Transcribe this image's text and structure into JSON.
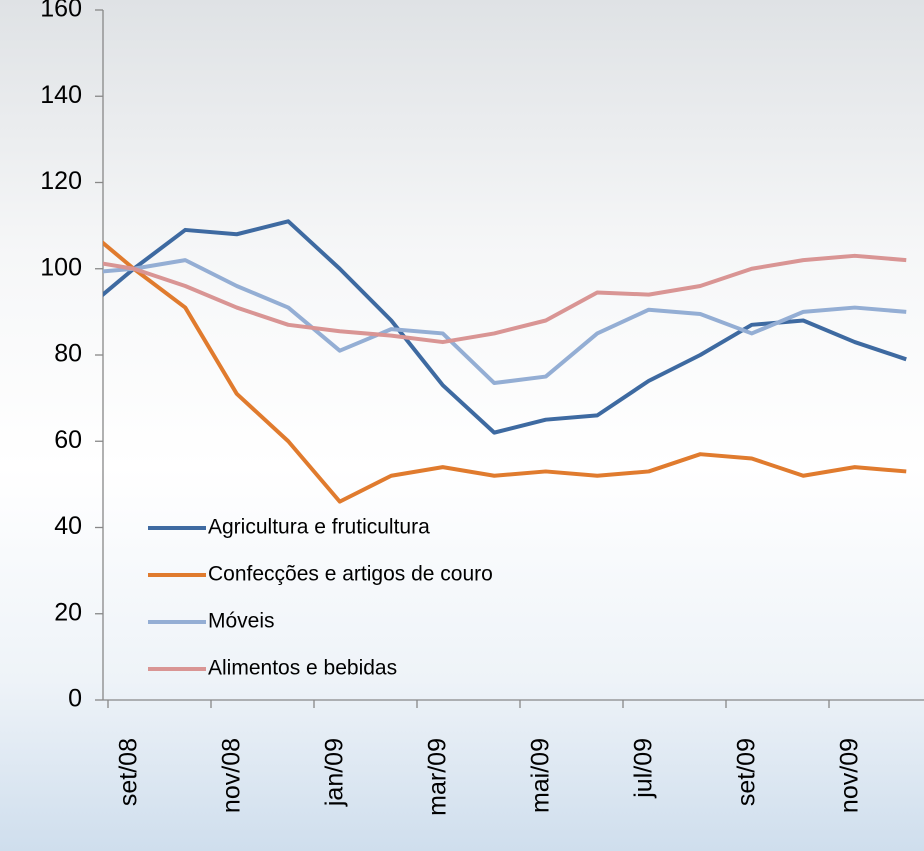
{
  "chart_data": {
    "type": "line",
    "categories": [
      null,
      "set/08",
      null,
      "nov/08",
      null,
      "jan/09",
      null,
      "mar/09",
      null,
      "mai/09",
      null,
      "jul/09",
      null,
      "set/09",
      null,
      "nov/09",
      null
    ],
    "series": [
      {
        "name": "Agricultura e fruticultura",
        "color": "#3e6aa1",
        "values": [
          90,
          100,
          109,
          108,
          111,
          100,
          88,
          73,
          62,
          65,
          66,
          74,
          80,
          87,
          88,
          83,
          79
        ]
      },
      {
        "name": "Confecções e artigos de couro",
        "color": "#e07b2e",
        "values": [
          110,
          100,
          91,
          71,
          60,
          46,
          52,
          54,
          52,
          53,
          52,
          53,
          57,
          56,
          52,
          54,
          53
        ]
      },
      {
        "name": "Móveis",
        "color": "#94aed4",
        "values": [
          99,
          100,
          102,
          96,
          91,
          81,
          86,
          85,
          73.5,
          75,
          85,
          90.5,
          89.5,
          85,
          90,
          91,
          90
        ]
      },
      {
        "name": "Alimentos e bebidas",
        "color": "#d99594",
        "values": [
          102,
          100,
          96,
          91,
          87,
          85.5,
          84.5,
          83,
          85,
          88,
          94.5,
          94,
          96,
          100,
          102,
          103,
          102
        ]
      }
    ],
    "ylim": [
      0,
      160
    ],
    "yticks": [
      0,
      20,
      40,
      60,
      80,
      100,
      120,
      140,
      160
    ],
    "legend": "lower-left"
  }
}
